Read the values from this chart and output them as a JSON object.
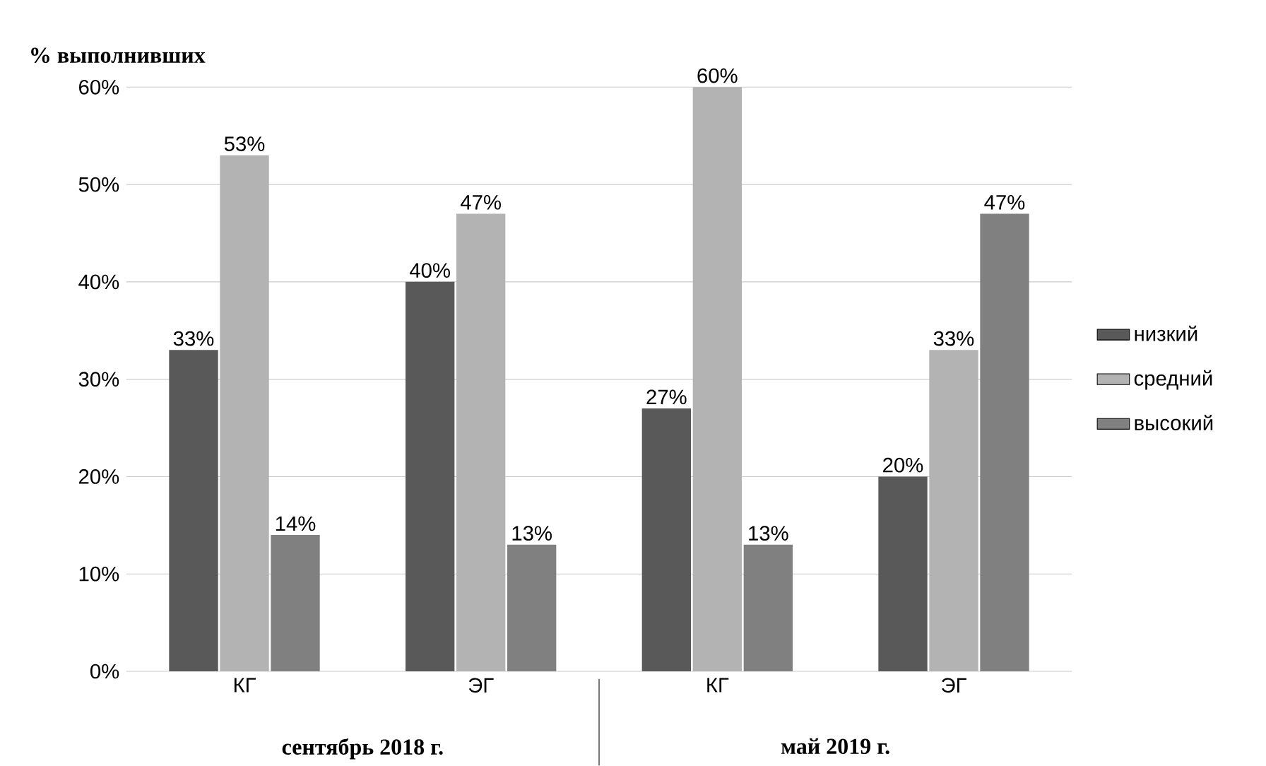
{
  "chart_data": {
    "type": "bar",
    "ylabel": "% выполнивших",
    "categories": [
      "КГ",
      "ЭГ",
      "КГ",
      "ЭГ"
    ],
    "series": [
      {
        "name": "низкий",
        "color": "#595959",
        "values": [
          33,
          40,
          27,
          20
        ],
        "value_labels": [
          "33%",
          "40%",
          "27%",
          "20%"
        ]
      },
      {
        "name": "средний",
        "color": "#b3b3b3",
        "values": [
          53,
          47,
          60,
          33
        ],
        "value_labels": [
          "53%",
          "47%",
          "60%",
          "33%"
        ]
      },
      {
        "name": "высокий",
        "color": "#808080",
        "values": [
          14,
          13,
          13,
          47
        ],
        "value_labels": [
          "14%",
          "13%",
          "13%",
          "47%"
        ]
      }
    ],
    "ylim": [
      0,
      60
    ],
    "yticks": [
      {
        "value": 0,
        "label": "0%"
      },
      {
        "value": 10,
        "label": "10%"
      },
      {
        "value": 20,
        "label": "20%"
      },
      {
        "value": 30,
        "label": "30%"
      },
      {
        "value": 40,
        "label": "40%"
      },
      {
        "value": 50,
        "label": "50%"
      },
      {
        "value": 60,
        "label": "60%"
      }
    ],
    "grid": "y",
    "legend": "right",
    "annotations": [
      "сентябрь 2018 г.",
      "май 2019 г."
    ]
  }
}
